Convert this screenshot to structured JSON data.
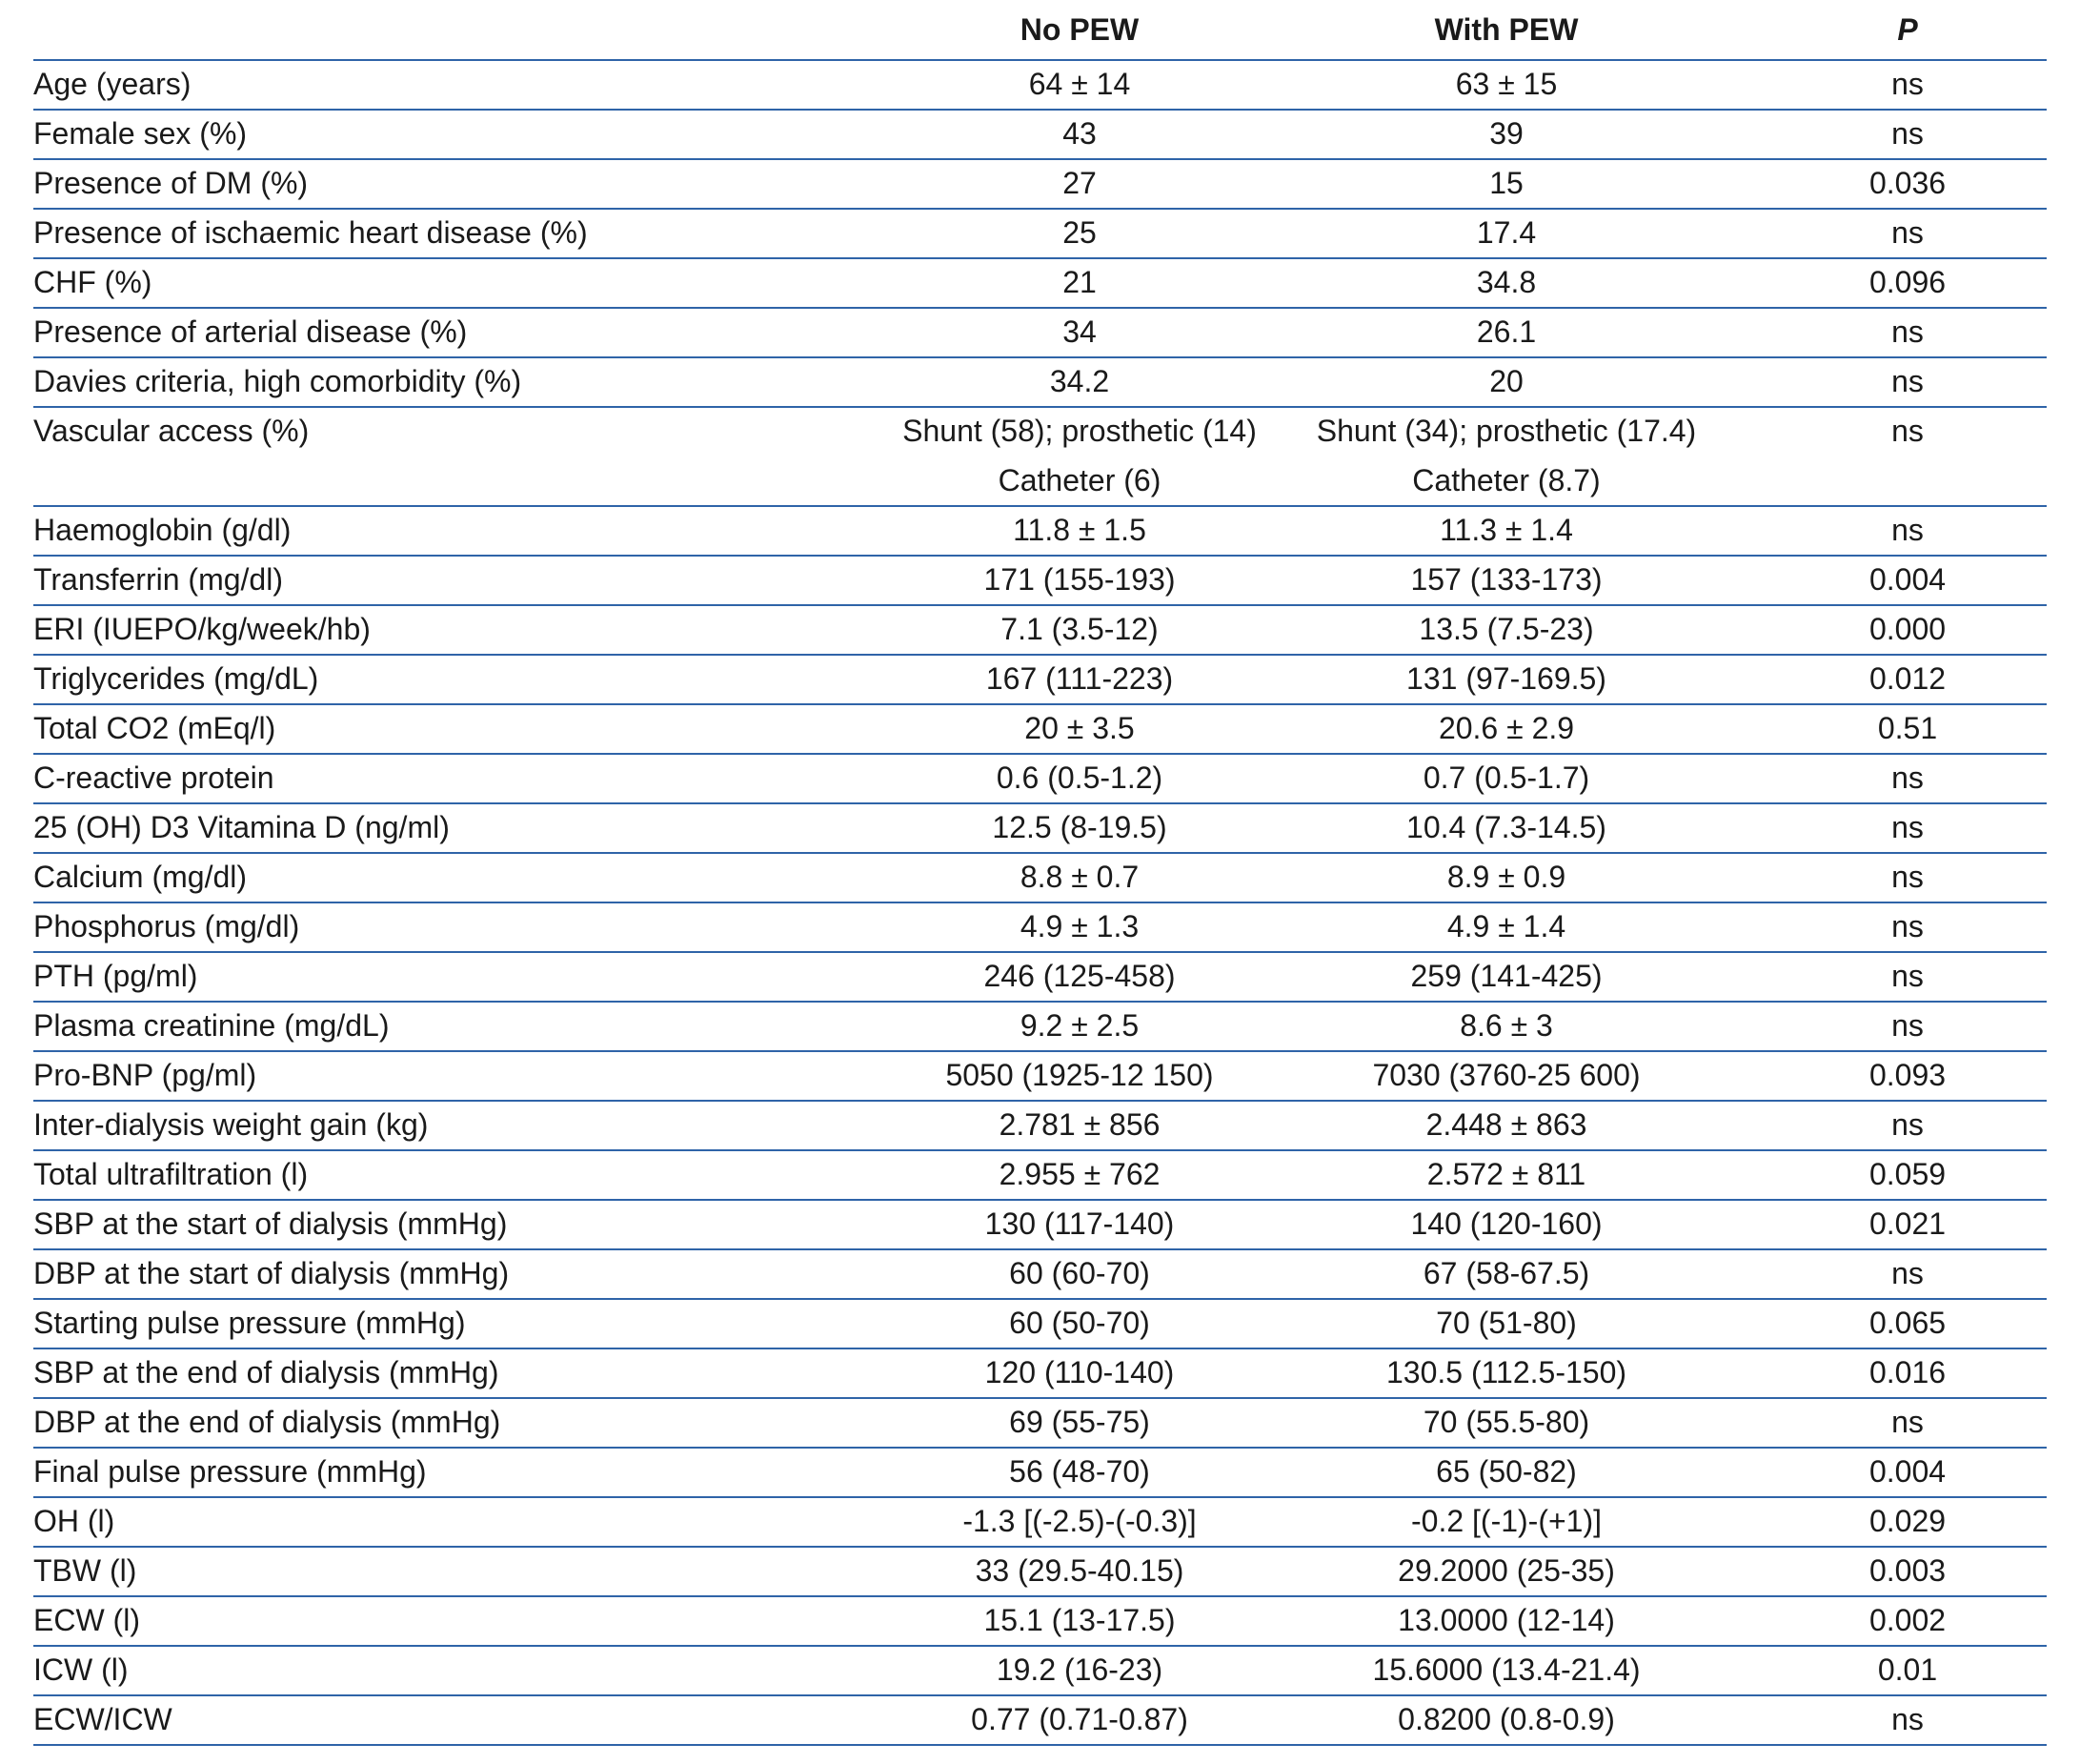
{
  "table": {
    "columns": [
      "No PEW",
      "With PEW",
      "P"
    ],
    "rows": [
      [
        "Age (years)",
        "64 ± 14",
        "63 ± 15",
        "ns"
      ],
      [
        "Female sex (%)",
        "43",
        "39",
        "ns"
      ],
      [
        "Presence of DM (%)",
        "27",
        "15",
        "0.036"
      ],
      [
        "Presence of ischaemic heart disease (%)",
        "25",
        "17.4",
        "ns"
      ],
      [
        "CHF (%)",
        "21",
        "34.8",
        "0.096"
      ],
      [
        "Presence of arterial disease (%)",
        "34",
        "26.1",
        "ns"
      ],
      [
        "Davies criteria, high comorbidity (%)",
        "34.2",
        "20",
        "ns"
      ],
      [
        "Vascular access (%)",
        [
          "Shunt (58); prosthetic (14)",
          "Catheter (6)"
        ],
        [
          "Shunt (34); prosthetic (17.4)",
          "Catheter (8.7)"
        ],
        "ns"
      ],
      [
        "Haemoglobin (g/dl)",
        "11.8 ± 1.5",
        "11.3 ± 1.4",
        "ns"
      ],
      [
        "Transferrin (mg/dl)",
        "171 (155-193)",
        "157 (133-173)",
        "0.004"
      ],
      [
        "ERI (IUEPO/kg/week/hb)",
        "7.1 (3.5-12)",
        "13.5 (7.5-23)",
        "0.000"
      ],
      [
        "Triglycerides (mg/dL)",
        "167 (111-223)",
        "131 (97-169.5)",
        "0.012"
      ],
      [
        "Total CO2 (mEq/l)",
        "20 ± 3.5",
        "20.6 ± 2.9",
        "0.51"
      ],
      [
        "C-reactive protein",
        "0.6 (0.5-1.2)",
        "0.7 (0.5-1.7)",
        "ns"
      ],
      [
        "25 (OH) D3 Vitamina D (ng/ml)",
        "12.5 (8-19.5)",
        "10.4 (7.3-14.5)",
        "ns"
      ],
      [
        "Calcium (mg/dl)",
        "8.8 ± 0.7",
        "8.9 ± 0.9",
        "ns"
      ],
      [
        "Phosphorus (mg/dl)",
        "4.9 ± 1.3",
        "4.9 ± 1.4",
        "ns"
      ],
      [
        "PTH (pg/ml)",
        "246 (125-458)",
        "259 (141-425)",
        "ns"
      ],
      [
        "Plasma creatinine (mg/dL)",
        "9.2 ± 2.5",
        "8.6 ± 3",
        "ns"
      ],
      [
        "Pro-BNP (pg/ml)",
        "5050 (1925-12 150)",
        "7030 (3760-25 600)",
        "0.093"
      ],
      [
        "Inter-dialysis weight gain (kg)",
        "2.781 ± 856",
        "2.448 ± 863",
        "ns"
      ],
      [
        "Total ultrafiltration (l)",
        "2.955 ± 762",
        "2.572 ± 811",
        "0.059"
      ],
      [
        "SBP at the start of dialysis (mmHg)",
        "130 (117-140)",
        "140 (120-160)",
        "0.021"
      ],
      [
        "DBP at the start of dialysis (mmHg)",
        "60 (60-70)",
        "67 (58-67.5)",
        "ns"
      ],
      [
        "Starting pulse pressure (mmHg)",
        "60 (50-70)",
        "70 (51-80)",
        "0.065"
      ],
      [
        "SBP at the end of dialysis (mmHg)",
        "120 (110-140)",
        "130.5 (112.5-150)",
        "0.016"
      ],
      [
        "DBP at the end of dialysis (mmHg)",
        "69 (55-75)",
        "70 (55.5-80)",
        "ns"
      ],
      [
        "Final pulse pressure (mmHg)",
        "56 (48-70)",
        "65 (50-82)",
        "0.004"
      ],
      [
        "OH (l)",
        "-1.3 [(-2.5)-(-0.3)]",
        "-0.2 [(-1)-(+1)]",
        "0.029"
      ],
      [
        "TBW (l)",
        "33 (29.5-40.15)",
        "29.2000 (25-35)",
        "0.003"
      ],
      [
        "ECW (l)",
        "15.1 (13-17.5)",
        "13.0000 (12-14)",
        "0.002"
      ],
      [
        "ICW (l)",
        "19.2 (16-23)",
        "15.6000 (13.4-21.4)",
        "0.01"
      ],
      [
        "ECW/ICW",
        "0.77 (0.71-0.87)",
        "0.8200 (0.8-0.9)",
        "ns"
      ]
    ]
  }
}
